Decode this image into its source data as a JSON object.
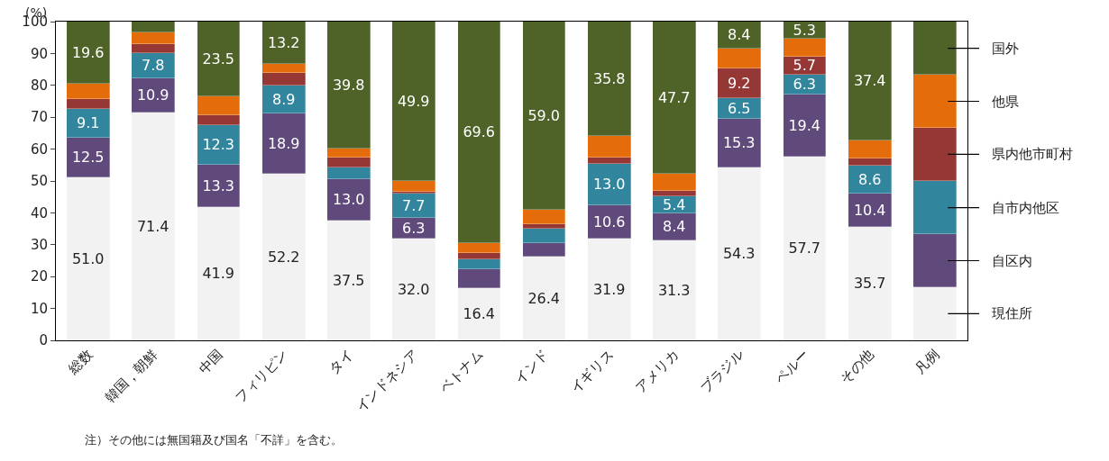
{
  "chart_data": {
    "type": "bar",
    "stacked": true,
    "ylabel": "(%)",
    "categories": [
      "総数",
      "韓国，朝鮮",
      "中国",
      "フィリピン",
      "タイ",
      "インドネシア",
      "ベトナム",
      "インド",
      "イギリス",
      "アメリカ",
      "ブラジル",
      "ペルー",
      "その他",
      "凡例"
    ],
    "series": [
      {
        "name": "現住所",
        "color": "#f2f2f2",
        "values": [
          51.0,
          71.4,
          41.9,
          52.2,
          37.5,
          32.0,
          16.4,
          26.4,
          31.9,
          31.3,
          54.3,
          57.7,
          35.7,
          16.7
        ],
        "value_labels": [
          "51.0",
          "71.4",
          "41.9",
          "52.2",
          "37.5",
          "32.0",
          "16.4",
          "26.4",
          "31.9",
          "31.3",
          "54.3",
          "57.7",
          "35.7",
          null
        ]
      },
      {
        "name": "自区内",
        "color": "#604a7b",
        "values": [
          12.5,
          10.9,
          13.3,
          18.9,
          13.0,
          6.3,
          5.9,
          4.2,
          10.6,
          8.4,
          15.3,
          19.4,
          10.4,
          16.6
        ],
        "value_labels": [
          "12.5",
          "10.9",
          "13.3",
          "18.9",
          "13.0",
          "6.3",
          null,
          null,
          "10.6",
          "8.4",
          "15.3",
          "19.4",
          "10.4",
          null
        ]
      },
      {
        "name": "自市内他区",
        "color": "#31859c",
        "values": [
          9.1,
          7.8,
          12.3,
          8.9,
          3.7,
          7.7,
          3.1,
          4.5,
          13.0,
          5.4,
          6.5,
          6.3,
          8.6,
          16.7
        ],
        "value_labels": [
          "9.1",
          "7.8",
          "12.3",
          "8.9",
          null,
          "7.7",
          null,
          null,
          "13.0",
          "5.4",
          "6.5",
          "6.3",
          "8.6",
          null
        ]
      },
      {
        "name": "県内他市町村",
        "color": "#953735",
        "values": [
          3.2,
          2.8,
          3.2,
          3.8,
          3.1,
          0.5,
          2.1,
          1.4,
          1.8,
          1.7,
          9.2,
          5.7,
          2.3,
          16.7
        ],
        "value_labels": [
          null,
          null,
          null,
          null,
          null,
          null,
          null,
          null,
          null,
          null,
          "9.2",
          "5.7",
          null,
          null
        ]
      },
      {
        "name": "他県",
        "color": "#e46c0a",
        "values": [
          4.6,
          3.6,
          5.8,
          3.0,
          2.9,
          3.6,
          2.9,
          4.5,
          6.9,
          5.5,
          6.3,
          5.6,
          5.6,
          16.6
        ]
      },
      {
        "name": "国外",
        "color": "#4f6228",
        "values": [
          19.6,
          3.5,
          23.5,
          13.2,
          39.8,
          49.9,
          69.6,
          59.0,
          35.8,
          47.7,
          8.4,
          5.3,
          37.4,
          16.7
        ],
        "value_labels": [
          "19.6",
          null,
          "23.5",
          "13.2",
          "39.8",
          "49.9",
          "69.6",
          "59.0",
          "35.8",
          "47.7",
          "8.4",
          "5.3",
          "37.4",
          null
        ]
      }
    ],
    "ylim": [
      0,
      100
    ],
    "yticks": [
      0,
      10,
      20,
      30,
      40,
      50,
      60,
      70,
      80,
      90,
      100
    ],
    "legend": false,
    "annotations": [
      "注）その他には無国籍及び国名「不詳」を含む。"
    ]
  }
}
